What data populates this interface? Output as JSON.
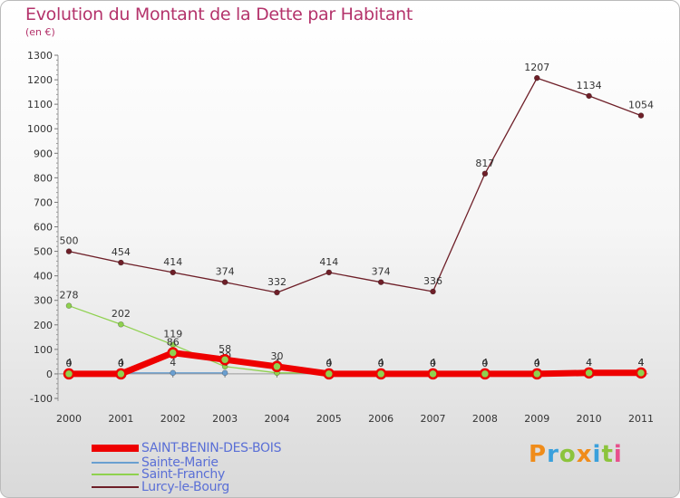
{
  "title": "Evolution du Montant de la Dette par Habitant",
  "subtitle": "(en €)",
  "logo": {
    "text": "Proxiti",
    "colors": [
      "#f08c1a",
      "#3aa0dc",
      "#8cc43c",
      "#f08c1a",
      "#3aa0dc",
      "#8cc43c",
      "#e8508c"
    ]
  },
  "chart_data": {
    "type": "line",
    "categories": [
      "2000",
      "2001",
      "2002",
      "2003",
      "2004",
      "2005",
      "2006",
      "2007",
      "2008",
      "2009",
      "2010",
      "2011"
    ],
    "ylim": [
      -100,
      1300
    ],
    "yticks": [
      -100,
      0,
      100,
      200,
      300,
      400,
      500,
      600,
      700,
      800,
      900,
      1000,
      1100,
      1200,
      1300
    ],
    "grid": false,
    "legend_position": "bottom-left",
    "series": [
      {
        "name": "Lurcy-le-Bourg",
        "color": "#6e1f28",
        "values": [
          500,
          454,
          414,
          374,
          332,
          414,
          374,
          336,
          817,
          1207,
          1134,
          1054
        ],
        "labels": [
          "500",
          "454",
          "414",
          "374",
          "332",
          "414",
          "374",
          "336",
          "817",
          "1207",
          "1134",
          "1054"
        ]
      },
      {
        "name": "Saint-Franchy",
        "color": "#8fd14f",
        "values": [
          278,
          202,
          119,
          30,
          4,
          4,
          4,
          4,
          4,
          4,
          4,
          4
        ],
        "labels": [
          "278",
          "202",
          "119",
          "30",
          "4",
          "4",
          "4",
          "4",
          "4",
          "4",
          "4",
          "4"
        ]
      },
      {
        "name": "Sainte-Marie",
        "color": "#6a9fd0",
        "values": [
          4,
          4,
          4,
          4,
          null,
          null,
          null,
          null,
          null,
          null,
          null,
          null
        ],
        "labels": [
          "4",
          "4",
          "4",
          "4",
          "",
          "",
          "",
          "",
          "",
          "",
          "",
          ""
        ]
      },
      {
        "name": "SAINT-BENIN-DES-BOIS",
        "color": "#ee0000",
        "values": [
          0,
          0,
          86,
          58,
          30,
          0,
          0,
          0,
          0,
          0,
          4,
          4
        ],
        "labels": [
          "0",
          "0",
          "86",
          "58",
          "30",
          "0",
          "0",
          "0",
          "0",
          "0",
          "4",
          "4"
        ]
      }
    ]
  },
  "legend": [
    {
      "label": "SAINT-BENIN-DES-BOIS",
      "color": "#ee0000"
    },
    {
      "label": "Sainte-Marie",
      "color": "#6a9fd0"
    },
    {
      "label": "Saint-Franchy",
      "color": "#8fd14f"
    },
    {
      "label": "Lurcy-le-Bourg",
      "color": "#6e1f28"
    }
  ]
}
